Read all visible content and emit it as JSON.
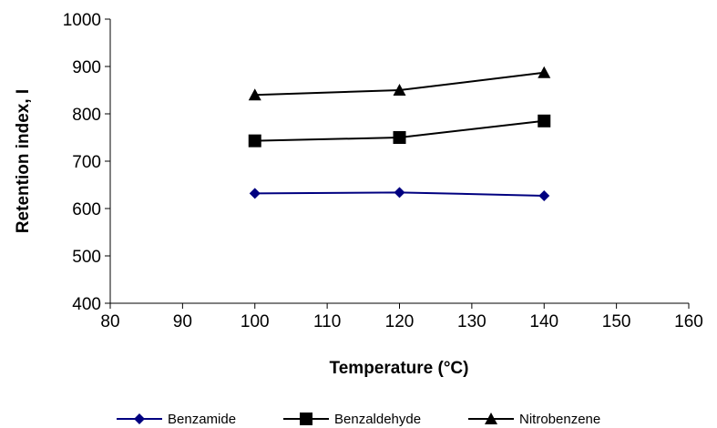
{
  "chart_data": {
    "type": "line",
    "title": "",
    "xlabel": "Temperature (°C)",
    "ylabel": "Retention index, I",
    "xlim": [
      80,
      160
    ],
    "ylim": [
      400,
      1000
    ],
    "x_ticks": [
      80,
      90,
      100,
      110,
      120,
      130,
      140,
      150,
      160
    ],
    "y_ticks": [
      400,
      500,
      600,
      700,
      800,
      900,
      1000
    ],
    "x_tick_labels": [
      "80",
      "90",
      "100",
      "110",
      "120",
      "130",
      "140",
      "150",
      "160"
    ],
    "y_tick_labels": [
      "400",
      "500",
      "600",
      "700",
      "800",
      "900",
      "1000"
    ],
    "grid": false,
    "legend_position": "bottom",
    "x": [
      100,
      120,
      140
    ],
    "series": [
      {
        "name": "Benzamide",
        "values": [
          632,
          634,
          627
        ],
        "color": "#000080",
        "marker": "diamond"
      },
      {
        "name": "Benzaldehyde",
        "values": [
          743,
          750,
          785
        ],
        "color": "#000000",
        "marker": "square"
      },
      {
        "name": "Nitrobenzene",
        "values": [
          840,
          850,
          887
        ],
        "color": "#000000",
        "marker": "triangle"
      }
    ]
  }
}
